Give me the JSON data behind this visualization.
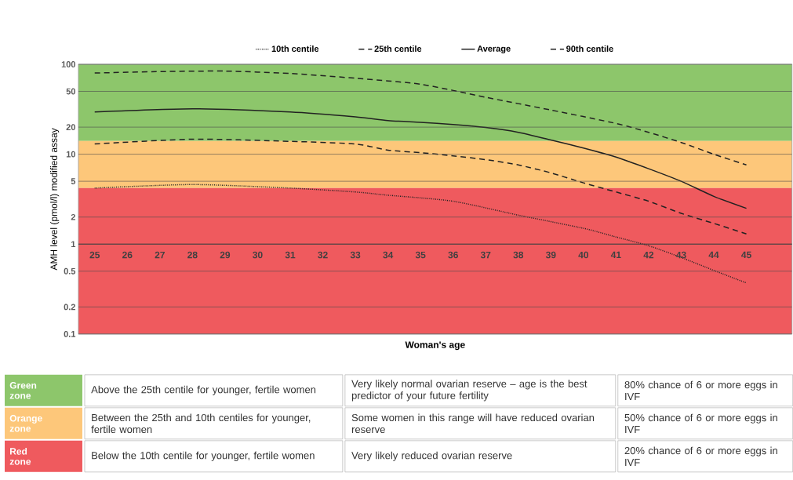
{
  "chart_data": {
    "type": "line",
    "xlabel": "Woman's age",
    "ylabel": "AMH level (pmol/l) modified assay",
    "log": "y",
    "grid": "y",
    "legend": "top",
    "xlim": [
      24.5,
      46.4
    ],
    "ylim": [
      0.1,
      100
    ],
    "xticks": [
      25,
      26,
      27,
      28,
      29,
      30,
      31,
      32,
      33,
      34,
      35,
      36,
      37,
      38,
      39,
      40,
      41,
      42,
      43,
      44,
      45
    ],
    "yticks": [
      0.1,
      0.2,
      0.5,
      1,
      2,
      5,
      10,
      20,
      50,
      100
    ],
    "series": [
      {
        "name": "10th centile",
        "color": "#222222",
        "line_style": "dotted",
        "x": [
          25,
          28,
          31,
          33,
          34,
          36,
          38,
          40,
          41,
          42,
          43,
          44,
          45
        ],
        "values": [
          4.2,
          4.6,
          4.2,
          3.8,
          3.5,
          3.0,
          2.1,
          1.5,
          1.2,
          0.96,
          0.71,
          0.51,
          0.37
        ]
      },
      {
        "name": "25th centile",
        "color": "#222222",
        "line_style": "dashed",
        "x": [
          25,
          28,
          31,
          33,
          34,
          35,
          36,
          37,
          38,
          39,
          40,
          41,
          42,
          43,
          44,
          45
        ],
        "values": [
          13,
          14.7,
          13.9,
          13,
          11.1,
          10.4,
          9.6,
          8.7,
          7.6,
          6.2,
          4.8,
          3.8,
          3.0,
          2.2,
          1.7,
          1.3
        ]
      },
      {
        "name": "Average",
        "color": "#222222",
        "line_style": "solid",
        "x": [
          25,
          28,
          31,
          33,
          34,
          35,
          36,
          37,
          38,
          39,
          40,
          41,
          42,
          43,
          44,
          45
        ],
        "values": [
          29.5,
          32,
          29.5,
          26,
          23.7,
          22.6,
          21.4,
          19.8,
          17.5,
          14.4,
          11.7,
          9.3,
          6.9,
          5,
          3.4,
          2.5
        ]
      },
      {
        "name": "90th centile",
        "color": "#222222",
        "line_style": "dashed",
        "x": [
          25,
          27,
          29,
          31,
          33,
          35,
          37,
          39,
          41,
          42,
          43,
          44,
          45
        ],
        "values": [
          80,
          83,
          84,
          79,
          70,
          60,
          43,
          31,
          22,
          17.5,
          13.5,
          10,
          7.6
        ]
      }
    ],
    "bands": [
      {
        "axis": "y",
        "from": 14,
        "to": 100,
        "color": "#8dc66b"
      },
      {
        "axis": "y",
        "from": 4.2,
        "to": 14,
        "color": "#fdc77a"
      },
      {
        "axis": "y",
        "from": 0.1,
        "to": 4.2,
        "color": "#ef5a5e"
      }
    ],
    "annotations": [
      "Green zone",
      "Above the 25th centile for younger, fertile women",
      "Very likely normal ovarian reserve – age is the best predictor of your future fertility",
      "80% chance of 6 or more eggs in IVF",
      "Orange zone",
      "Between the 25th and 10th centiles for younger, fertile women",
      "Some women in this range will have reduced ovarian reserve",
      "50% chance of 6 or more eggs in IVF",
      "Red zone",
      "Below the 10th centile for younger, fertile women",
      "Very likely reduced ovarian reserve",
      "20% chance of 6 or more eggs in IVF"
    ]
  }
}
